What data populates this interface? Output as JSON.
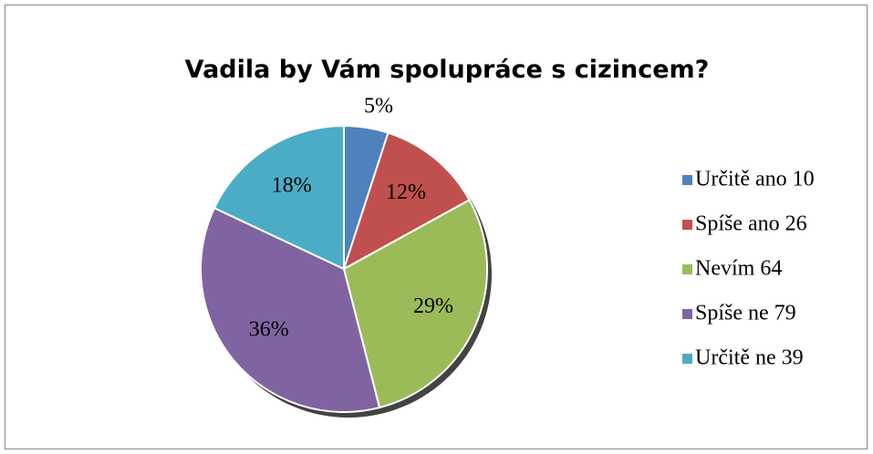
{
  "chart_data": {
    "type": "pie",
    "title": "Vadila by Vám spolupráce s cizincem?",
    "categories": [
      "Určitě ano 10",
      "Spíše ano 26",
      "Nevím 64",
      "Spíše ne 79",
      "Určitě ne 39"
    ],
    "values": [
      5,
      12,
      29,
      36,
      18
    ],
    "value_labels": [
      "5%",
      "12%",
      "29%",
      "36%",
      "18%"
    ],
    "colors": [
      "#4f81bd",
      "#c0504d",
      "#9bbb59",
      "#8064a2",
      "#4bacc6"
    ],
    "legend": "right"
  }
}
